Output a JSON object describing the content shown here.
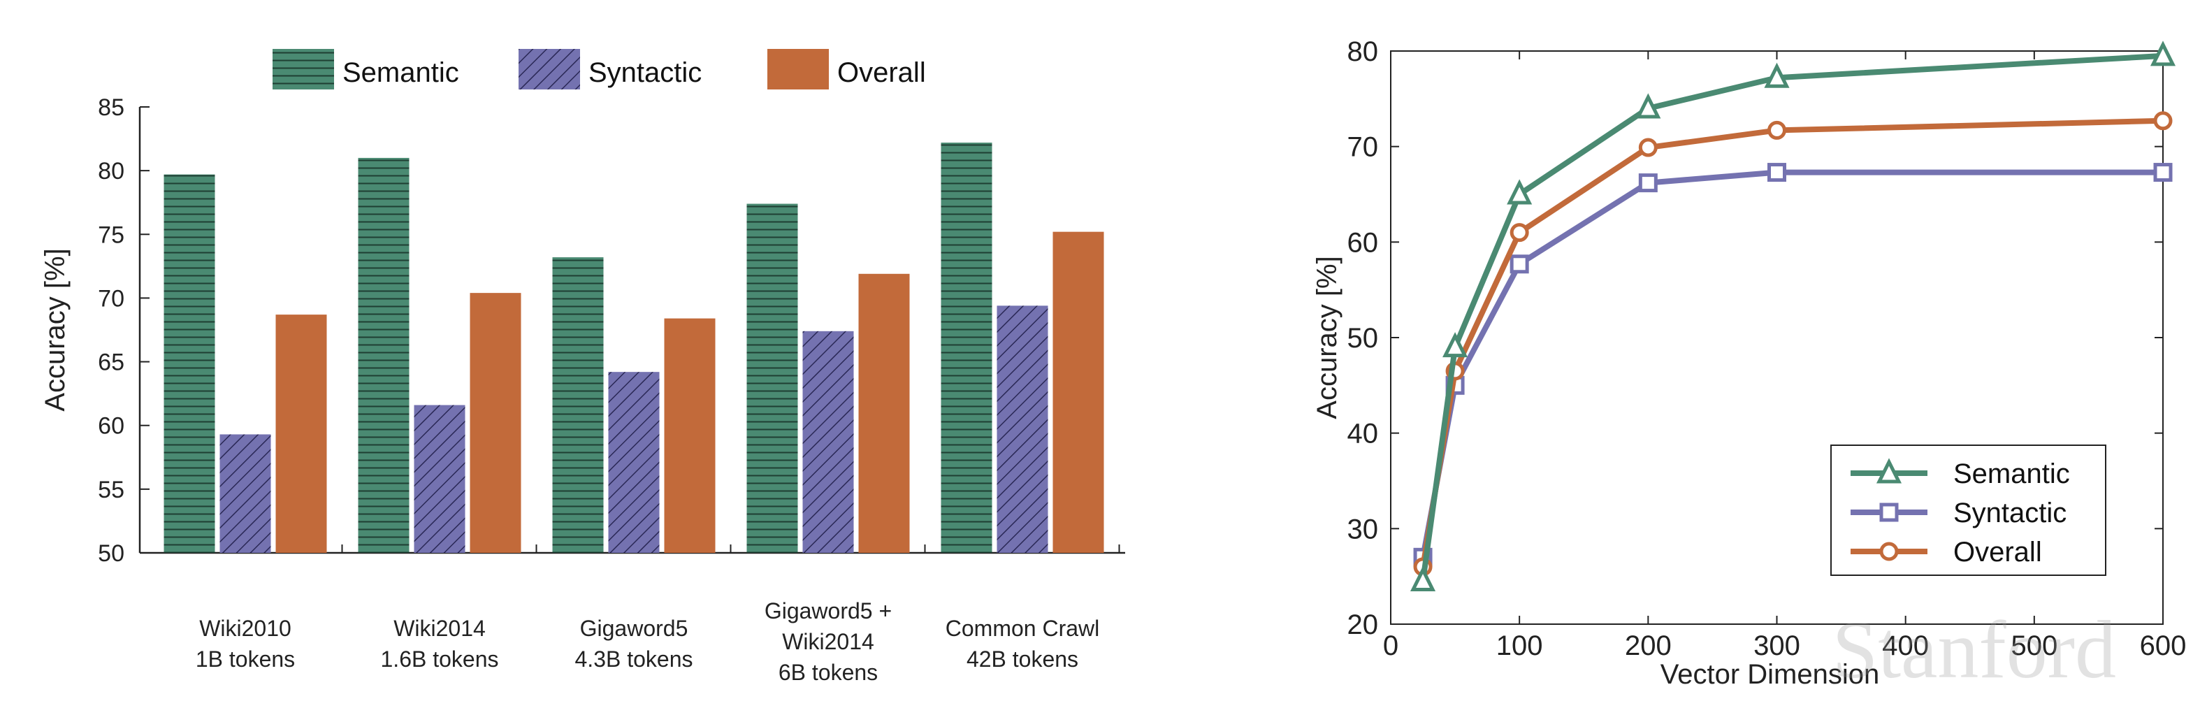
{
  "colors": {
    "semantic": "#4a8a72",
    "syntactic": "#7472b0",
    "overall": "#c26a3a",
    "axis": "#222222"
  },
  "watermark": "Stanford",
  "chart_data": [
    {
      "type": "bar",
      "legend_position": "top",
      "ylabel": "Accuracy [%]",
      "ylim": [
        50,
        85
      ],
      "yticks": [
        50,
        55,
        60,
        65,
        70,
        75,
        80,
        85
      ],
      "categories": [
        [
          "Wiki2010",
          "1B tokens"
        ],
        [
          "Wiki2014",
          "1.6B tokens"
        ],
        [
          "Gigaword5",
          "4.3B tokens"
        ],
        [
          "Gigaword5 +",
          "Wiki2014",
          "6B tokens"
        ],
        [
          "Common Crawl",
          "42B tokens"
        ]
      ],
      "series": [
        {
          "name": "Semantic",
          "pattern": "horizontal-hatch",
          "values": [
            79.7,
            81.0,
            73.2,
            77.4,
            82.2
          ]
        },
        {
          "name": "Syntactic",
          "pattern": "diagonal-hatch",
          "values": [
            59.3,
            61.6,
            64.2,
            67.4,
            69.4
          ]
        },
        {
          "name": "Overall",
          "pattern": "solid",
          "values": [
            68.7,
            70.4,
            68.4,
            71.9,
            75.2
          ]
        }
      ]
    },
    {
      "type": "line",
      "legend_position": "bottom-right",
      "xlabel": "Vector Dimension",
      "ylabel": "Accuracy [%]",
      "xlim": [
        0,
        600
      ],
      "ylim": [
        20,
        80
      ],
      "xticks": [
        0,
        100,
        200,
        300,
        400,
        500,
        600
      ],
      "yticks": [
        20,
        30,
        40,
        50,
        60,
        70,
        80
      ],
      "x": [
        25,
        50,
        100,
        200,
        300,
        600
      ],
      "series": [
        {
          "name": "Semantic",
          "marker": "triangle",
          "values": [
            24.5,
            49.0,
            65.0,
            74.0,
            77.2,
            79.5
          ]
        },
        {
          "name": "Syntactic",
          "marker": "square",
          "values": [
            27.0,
            45.0,
            57.7,
            66.2,
            67.3,
            67.3
          ]
        },
        {
          "name": "Overall",
          "marker": "circle",
          "values": [
            26.0,
            46.5,
            61.0,
            69.9,
            71.7,
            72.7
          ]
        }
      ]
    }
  ]
}
